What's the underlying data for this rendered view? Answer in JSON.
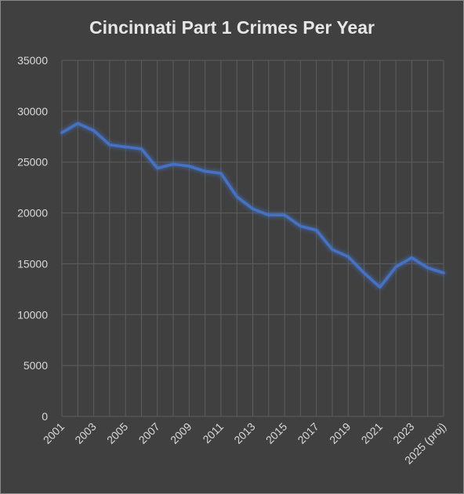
{
  "chart_data": {
    "type": "line",
    "title": "Cincinnati Part 1 Crimes Per Year",
    "xlabel": "",
    "ylabel": "",
    "ylim": [
      0,
      35000
    ],
    "yticks": [
      "0",
      "5000",
      "10000",
      "15000",
      "20000",
      "25000",
      "30000",
      "35000"
    ],
    "categories": [
      "2001",
      "2002",
      "2003",
      "2004",
      "2005",
      "2006",
      "2007",
      "2008",
      "2009",
      "2010",
      "2011",
      "2012",
      "2013",
      "2014",
      "2015",
      "2016",
      "2017",
      "2018",
      "2019",
      "2020",
      "2021",
      "2022",
      "2023",
      "2024",
      "2025 (proj)"
    ],
    "xtick_labels": [
      "2001",
      "",
      "2003",
      "",
      "2005",
      "",
      "2007",
      "",
      "2009",
      "",
      "2011",
      "",
      "2013",
      "",
      "2015",
      "",
      "2017",
      "",
      "2019",
      "",
      "2021",
      "",
      "2023",
      "",
      "2025 (proj)"
    ],
    "series": [
      {
        "values": [
          27900,
          28800,
          28100,
          26700,
          26500,
          26300,
          24400,
          24800,
          24600,
          24100,
          23900,
          21600,
          20400,
          19800,
          19800,
          18700,
          18300,
          16400,
          15700,
          14100,
          12700,
          14700,
          15600,
          14600,
          14100
        ],
        "color": "#4472c4"
      }
    ],
    "grid": true,
    "legend": "none",
    "colors": {
      "background": "#404040",
      "gridline": "#5e5e5e",
      "line": "#4472c4",
      "text": "#d9d9d9"
    }
  }
}
